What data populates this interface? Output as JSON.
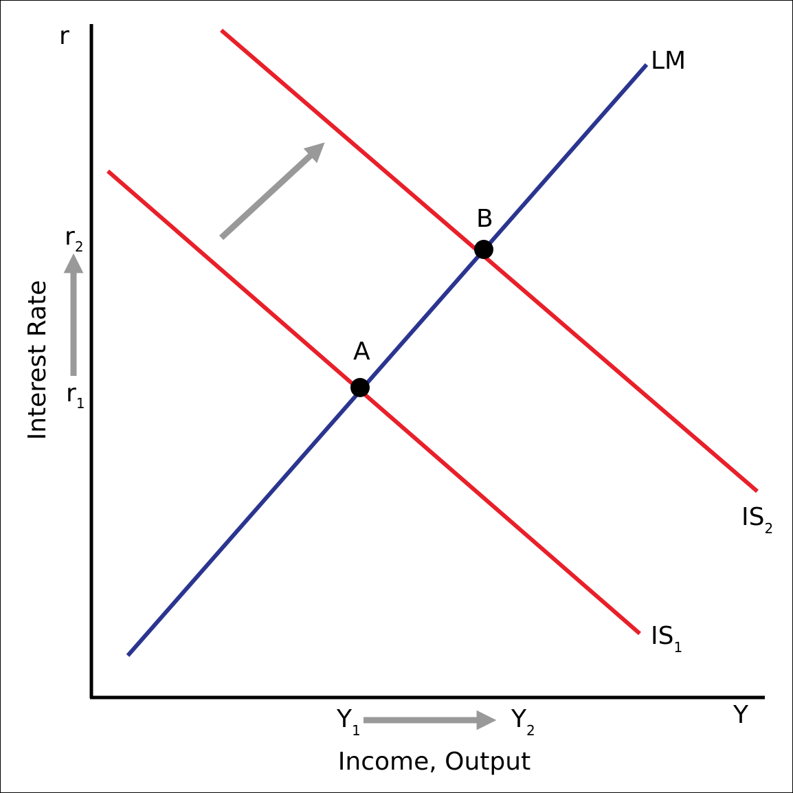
{
  "colors": {
    "is_curve": "#e8202a",
    "lm_curve": "#2b3590",
    "axis": "#000000",
    "shift_arrow": "#999999",
    "point": "#000000"
  },
  "axes": {
    "y_symbol": "r",
    "x_symbol": "Y",
    "y_title": "Interest Rate",
    "x_title": "Income, Output"
  },
  "curves": {
    "lm": "LM",
    "is1": {
      "base": "IS",
      "sub": "1"
    },
    "is2": {
      "base": "IS",
      "sub": "2"
    }
  },
  "points": {
    "a": "A",
    "b": "B"
  },
  "ticks": {
    "r1": {
      "base": "r",
      "sub": "1"
    },
    "r2": {
      "base": "r",
      "sub": "2"
    },
    "y1": {
      "base": "Y",
      "sub": "1"
    },
    "y2": {
      "base": "Y",
      "sub": "2"
    }
  }
}
